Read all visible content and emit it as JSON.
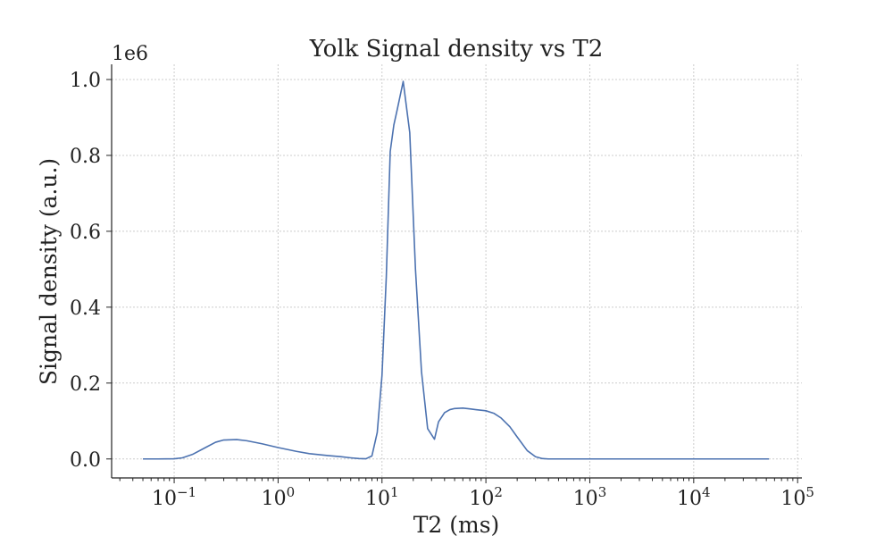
{
  "chart_data": {
    "type": "line",
    "title": "Yolk Signal density vs T2",
    "xlabel": "T2 (ms)",
    "ylabel": "Signal density (a.u.)",
    "y_offset_label": "1e6",
    "x_scale": "log",
    "xlim": [
      0.025,
      110000
    ],
    "ylim": [
      -50000,
      1040000
    ],
    "grid": true,
    "x_ticks": [
      {
        "value": 0.1,
        "base": "10",
        "exp": "−1"
      },
      {
        "value": 1,
        "base": "10",
        "exp": "0"
      },
      {
        "value": 10,
        "base": "10",
        "exp": "1"
      },
      {
        "value": 100,
        "base": "10",
        "exp": "2"
      },
      {
        "value": 1000,
        "base": "10",
        "exp": "3"
      },
      {
        "value": 10000,
        "base": "10",
        "exp": "4"
      },
      {
        "value": 100000,
        "base": "10",
        "exp": "5"
      }
    ],
    "y_ticks": [
      {
        "value": 0,
        "label": "0.0"
      },
      {
        "value": 200000,
        "label": "0.2"
      },
      {
        "value": 400000,
        "label": "0.4"
      },
      {
        "value": 600000,
        "label": "0.6"
      },
      {
        "value": 800000,
        "label": "0.8"
      },
      {
        "value": 1000000,
        "label": "1.0"
      }
    ],
    "series": [
      {
        "color": "#4c72b0",
        "x": [
          0.05,
          0.07,
          0.1,
          0.12,
          0.15,
          0.2,
          0.25,
          0.3,
          0.4,
          0.5,
          0.7,
          1.0,
          1.5,
          2.0,
          3.0,
          4.0,
          5.0,
          6.0,
          7.0,
          8.0,
          9.0,
          10.0,
          11.0,
          12.0,
          13.0,
          14.0,
          16.0,
          18.5,
          21.0,
          24.0,
          27.5,
          32.0,
          35.0,
          40.0,
          45.0,
          50.0,
          60.0,
          70.0,
          80.0,
          100.0,
          120.0,
          140.0,
          170.0,
          200.0,
          250.0,
          300.0,
          350.0,
          400.0,
          500.0,
          1000.0,
          5000.0,
          10000.0,
          53000.0
        ],
        "y": [
          0,
          0,
          500,
          3000,
          12000,
          30000,
          44000,
          50000,
          51000,
          48000,
          40000,
          30000,
          20000,
          14000,
          9000,
          6000,
          3000,
          1000,
          500,
          8000,
          70000,
          220000,
          480000,
          810000,
          880000,
          920000,
          995000,
          860000,
          500000,
          230000,
          80000,
          52000,
          98000,
          122000,
          130000,
          133000,
          134000,
          132000,
          130000,
          127000,
          120000,
          108000,
          85000,
          58000,
          22000,
          6000,
          1000,
          0,
          0,
          0,
          0,
          0,
          0
        ]
      }
    ]
  }
}
